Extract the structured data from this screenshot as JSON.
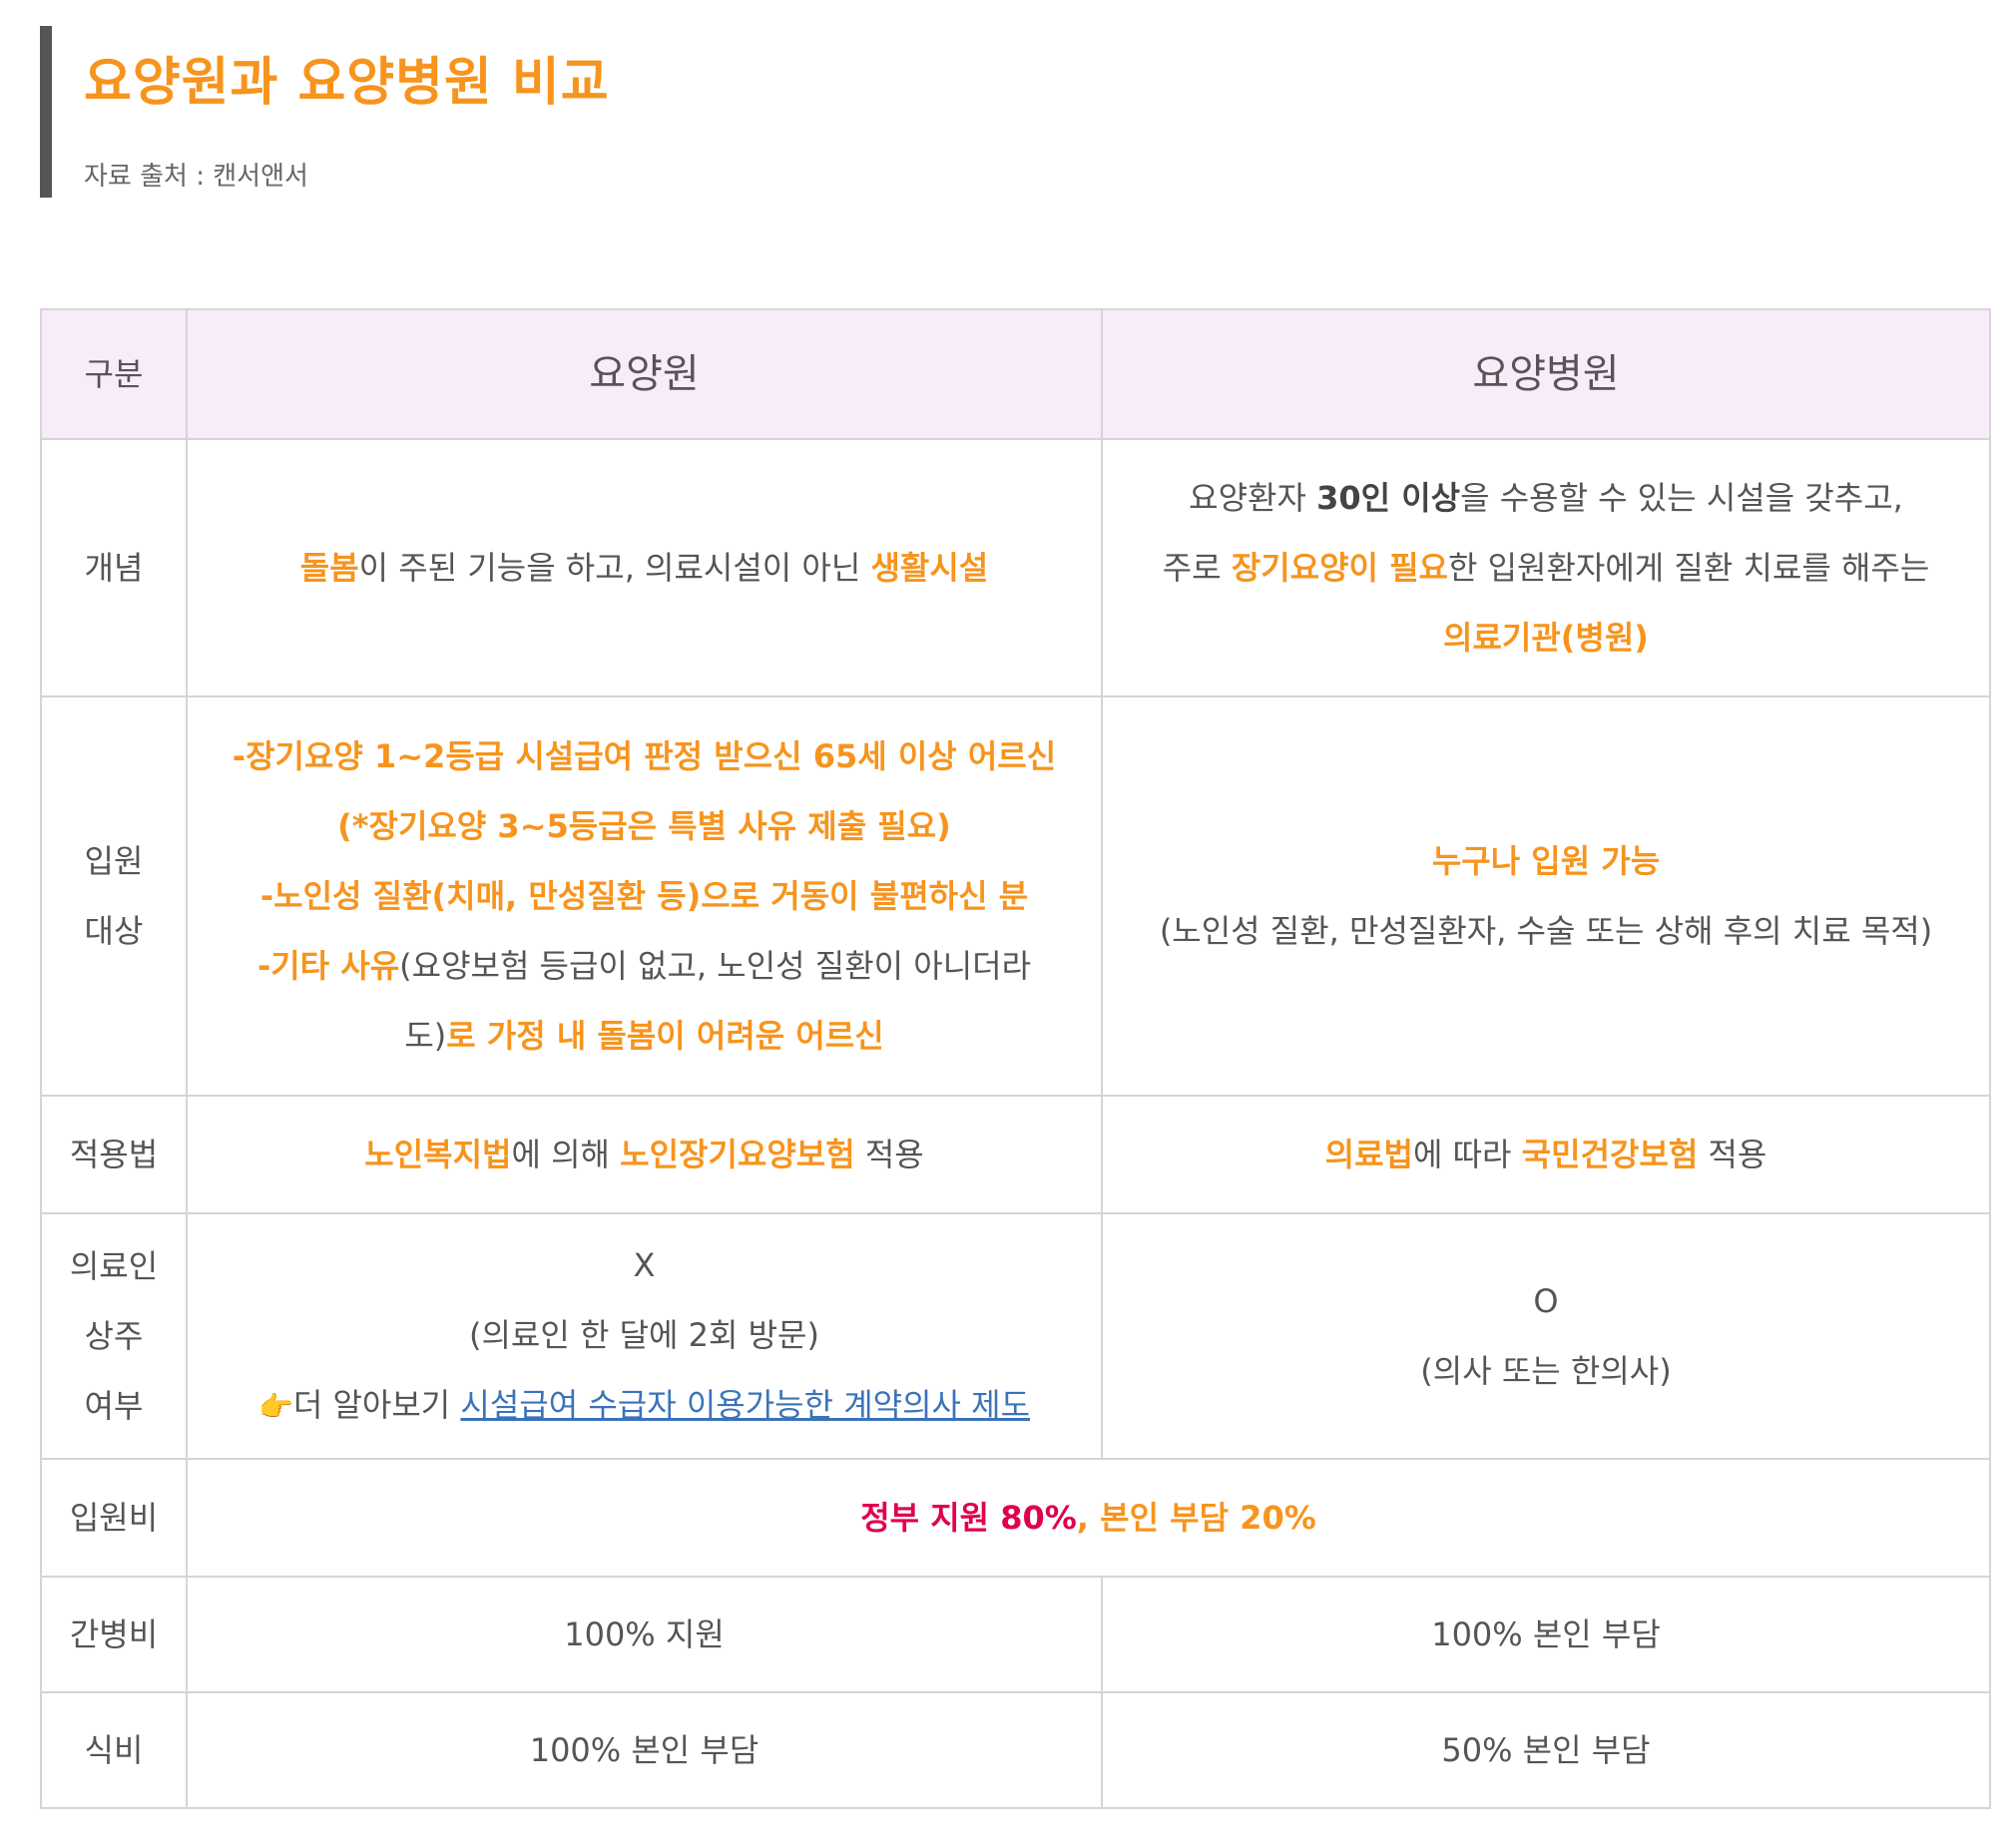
{
  "heading": {
    "title": "요양원과 요양병원 비교",
    "source": "자료 출처 : 캔서앤서"
  },
  "table": {
    "headers": [
      "구분",
      "요양원",
      "요양병원"
    ],
    "concept": {
      "label": "개념",
      "nursing_home": {
        "p1": "돌봄",
        "p2": "이 주된 기능을 하고, 의료시설이 아닌 ",
        "p3": "생활시설"
      },
      "hospital": {
        "l1a": "요양환자 ",
        "l1b": "30인 이상",
        "l1c": "을 수용할 수 있는 시설을 갖추고,",
        "l2a": "주로 ",
        "l2b": "장기요양이 필요",
        "l2c": "한 입원환자에게 질환 치료를 해주는",
        "l3": "의료기관(병원)"
      }
    },
    "admission": {
      "label_1": "입원",
      "label_2": "대상",
      "nursing_home": {
        "l1": "-장기요양 1~2등급 시설급여 판정 받으신 65세 이상 어르신",
        "l2": "(*장기요양 3~5등급은 특별 사유 제출 필요)",
        "l3": "-노인성 질환(치매, 만성질환 등)으로 거동이 불편하신 분",
        "l4a": "-기타 사유",
        "l4b": "(요양보험 등급이 없고, 노인성 질환이 아니더라",
        "l5a": "도)",
        "l5b": "로 가정 내 돌봄이 어려운 어르신"
      },
      "hospital": {
        "l1": "누구나 입원 가능",
        "l2": "(노인성 질환, 만성질환자, 수술 또는 상해 후의 치료 목적)"
      }
    },
    "law": {
      "label": "적용법",
      "nursing_home": {
        "p1": "노인복지법",
        "p2": "에 의해 ",
        "p3": "노인장기요양보험",
        "p4": " 적용"
      },
      "hospital": {
        "p1": "의료법",
        "p2": "에 따라 ",
        "p3": "국민건강보험",
        "p4": " 적용"
      }
    },
    "doctor": {
      "label_1": "의료인",
      "label_2": "상주",
      "label_3": "여부",
      "nursing_home": {
        "mark": "X",
        "note": "(의료인 한 달에 2회 방문)",
        "hand": "👉",
        "more": "더 알아보기 ",
        "link": "시설급여 수급자 이용가능한 계약의사 제도"
      },
      "hospital": {
        "mark": "O",
        "note": "(의사 또는 한의사)"
      }
    },
    "cost": {
      "label": "입원비",
      "value_a": "정부 지원 80%",
      "sep": ", ",
      "value_b": "본인 부담 20%"
    },
    "caregiver": {
      "label": "간병비",
      "nursing_home": "100% 지원",
      "hospital": "100% 본인 부담"
    },
    "meals": {
      "label": "식비",
      "nursing_home": "100% 본인 부담",
      "hospital": "50% 본인 부담"
    }
  }
}
